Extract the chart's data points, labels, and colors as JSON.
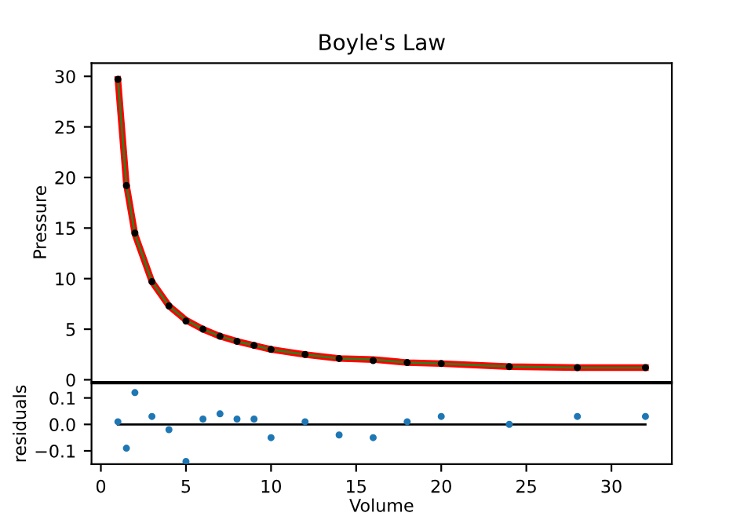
{
  "chart_data": [
    {
      "type": "scatter",
      "title": "Boyle's Law",
      "ylabel": "Pressure",
      "xlim": [
        -0.55,
        33.55
      ],
      "ylim": [
        -0.2,
        31.3
      ],
      "yticks": [
        0,
        5,
        10,
        15,
        20,
        25,
        30
      ],
      "tick_labels": "y",
      "grid": false,
      "series": [
        {
          "type": "line",
          "color": "#ff0000",
          "x": [
            1,
            1.5,
            2,
            3,
            4,
            5,
            6,
            7,
            8,
            9,
            10,
            12,
            14,
            16,
            18,
            20,
            24,
            28,
            32
          ],
          "values": [
            29.7,
            19.3,
            14.4,
            9.7,
            7.3,
            5.9,
            5.0,
            4.3,
            3.8,
            3.4,
            3.0,
            2.5,
            2.1,
            2.0,
            1.7,
            1.6,
            1.3,
            1.2,
            1.2
          ]
        },
        {
          "type": "line",
          "color": "#2e7d20",
          "x": [
            1,
            1.5,
            2,
            3,
            4,
            5,
            6,
            7,
            8,
            9,
            10,
            12,
            14,
            16,
            18,
            20,
            24,
            28,
            32
          ],
          "values": [
            29.7,
            19.3,
            14.4,
            9.7,
            7.3,
            5.9,
            5.0,
            4.3,
            3.8,
            3.4,
            3.0,
            2.5,
            2.1,
            2.0,
            1.7,
            1.6,
            1.3,
            1.2,
            1.2
          ]
        },
        {
          "type": "scatter",
          "color": "#000000",
          "x": [
            1,
            1.5,
            2,
            3,
            4,
            5,
            6,
            7,
            8,
            9,
            10,
            12,
            14,
            16,
            18,
            20,
            24,
            28,
            32
          ],
          "values": [
            29.7,
            19.2,
            14.5,
            9.7,
            7.3,
            5.8,
            5.0,
            4.3,
            3.8,
            3.4,
            3.0,
            2.5,
            2.1,
            1.9,
            1.7,
            1.6,
            1.3,
            1.2,
            1.2
          ]
        }
      ]
    },
    {
      "type": "scatter",
      "xlabel": "Volume",
      "ylabel": "residuals",
      "xlim": [
        -0.55,
        33.55
      ],
      "xticks": [
        0,
        5,
        10,
        15,
        20,
        25,
        30
      ],
      "ylim": [
        -0.15,
        0.155
      ],
      "yticks": [
        {
          "value": 0.1,
          "label": "0.1"
        },
        {
          "value": 0,
          "label": "0.0"
        },
        {
          "value": -0.1,
          "label": "−0.1"
        }
      ],
      "grid": false,
      "series": [
        {
          "type": "line",
          "color": "#000000",
          "x": [
            1,
            32
          ],
          "values": [
            0,
            0
          ]
        },
        {
          "type": "scatter",
          "color": "#1f77b4",
          "x": [
            1,
            1.5,
            2,
            3,
            4,
            5,
            6,
            7,
            8,
            9,
            10,
            12,
            14,
            16,
            18,
            20,
            24,
            28,
            32
          ],
          "values": [
            0.01,
            -0.09,
            0.12,
            0.03,
            -0.02,
            -0.14,
            0.02,
            0.04,
            0.02,
            0.02,
            -0.05,
            0.01,
            -0.04,
            -0.05,
            0.01,
            0.03,
            0.0,
            0.03,
            0.03
          ]
        }
      ]
    }
  ]
}
